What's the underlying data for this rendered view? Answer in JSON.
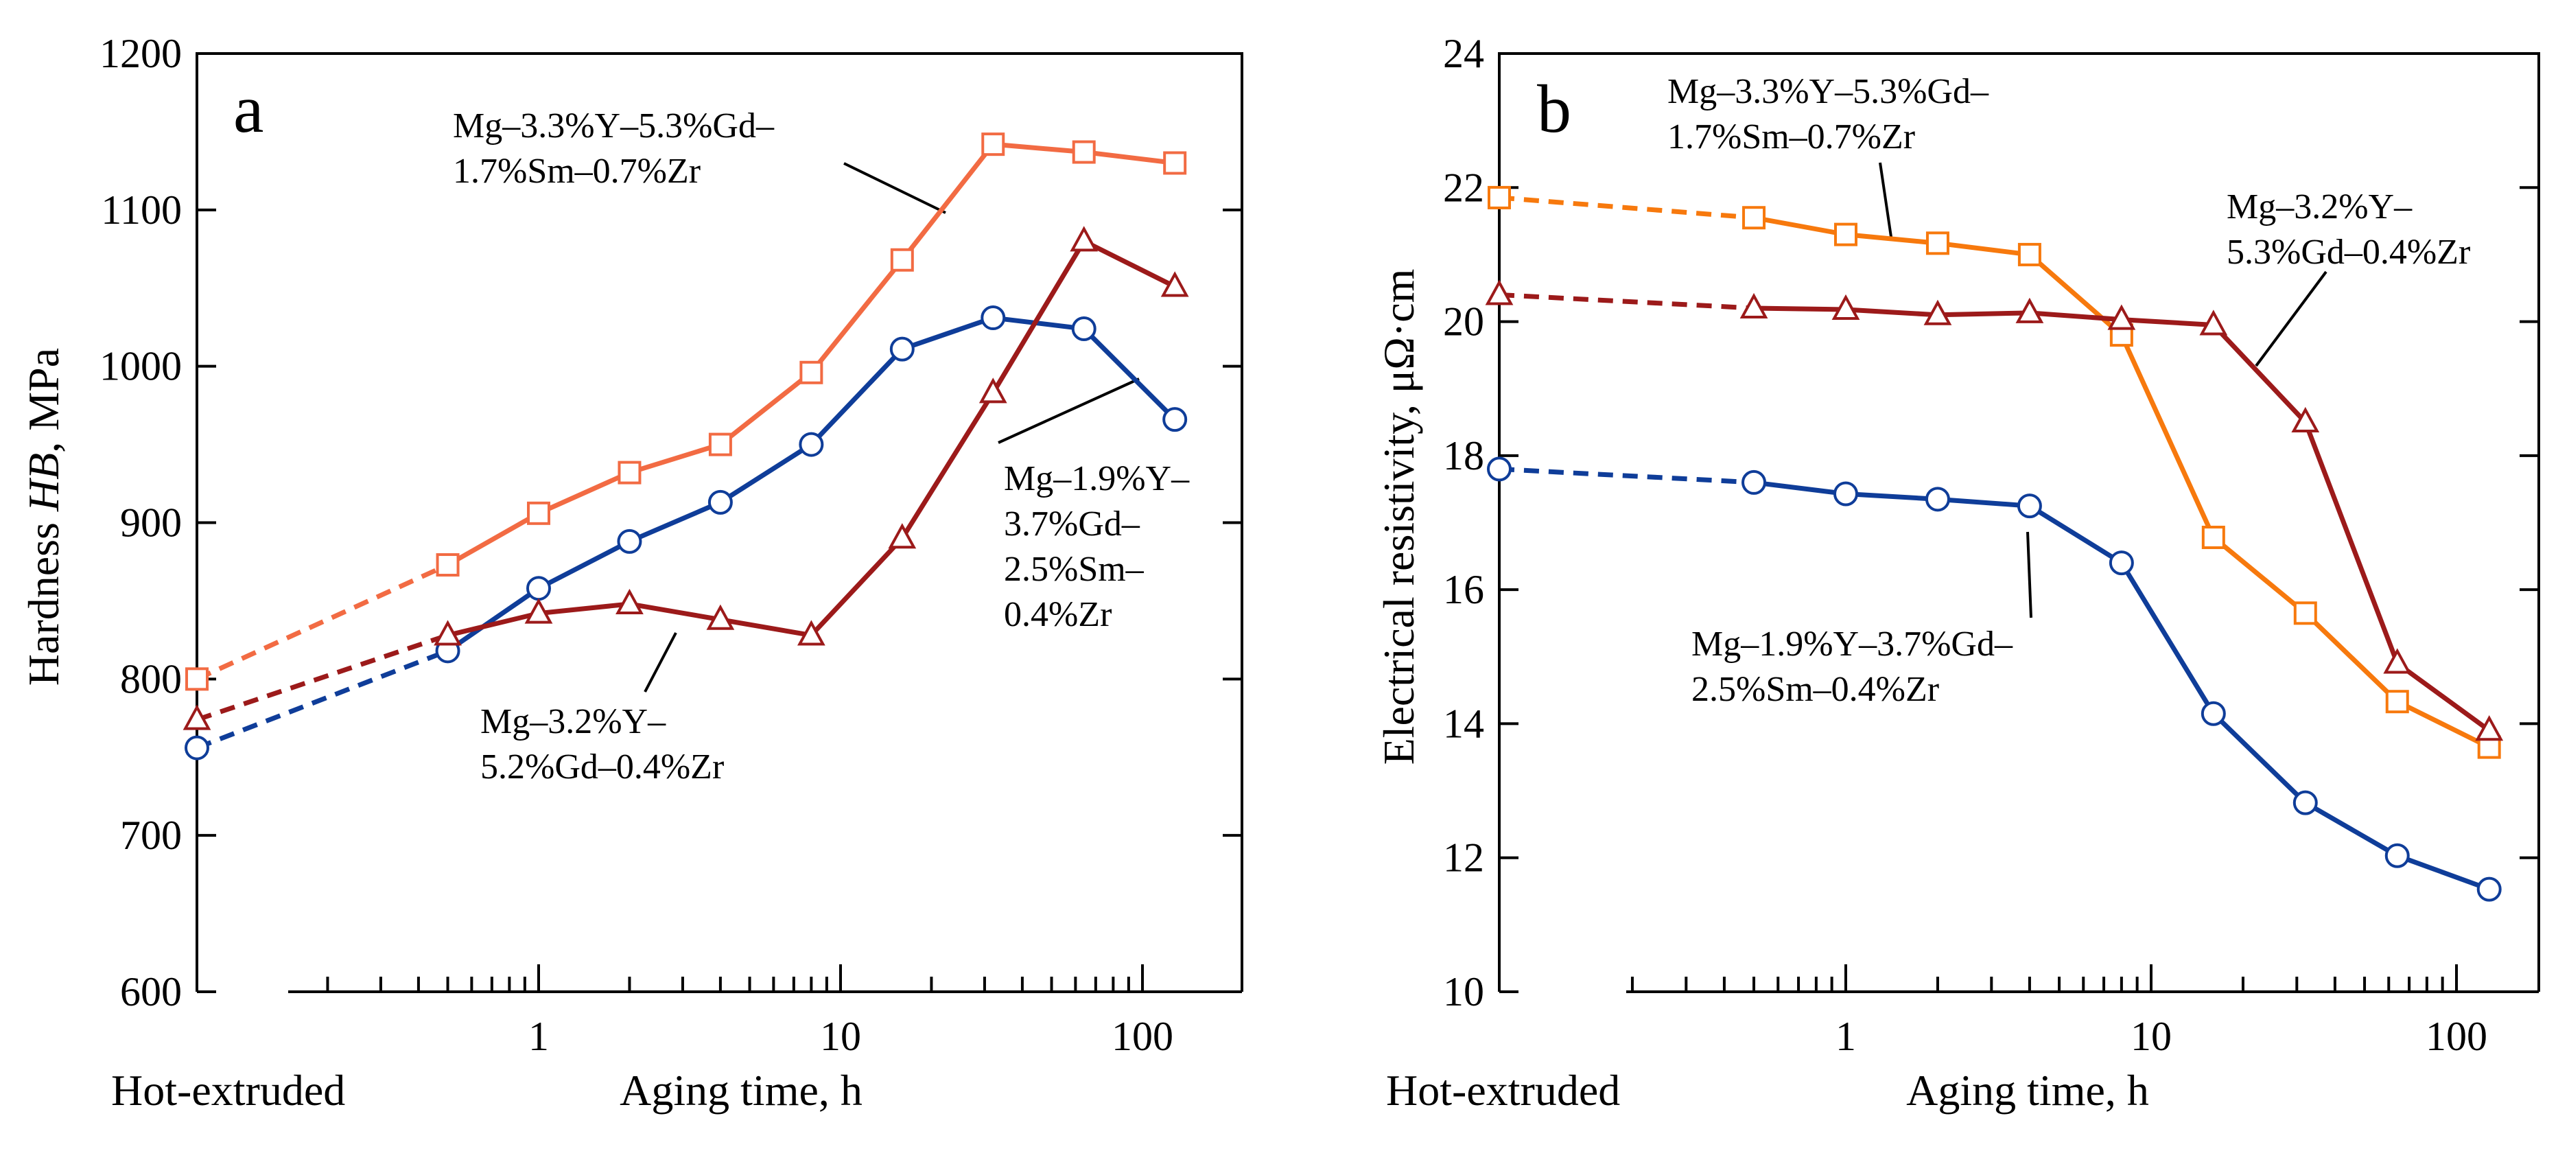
{
  "chart_data": [
    {
      "type": "line",
      "panel_label": "a",
      "ylabel_prefix": "Hardness ",
      "ylabel_italic": "HB",
      "ylabel_suffix": ", MPa",
      "xlabel": "Aging time, h",
      "x_start_label": "Hot-extruded",
      "x_scale": "log",
      "ylim": [
        600,
        1200
      ],
      "y_ticks": [
        600,
        700,
        800,
        900,
        1000,
        1100,
        1200
      ],
      "x_ticks": [
        {
          "value": 1,
          "label": "1"
        },
        {
          "value": 10,
          "label": "10"
        },
        {
          "value": 100,
          "label": "100"
        }
      ],
      "x_start": 0.113,
      "x_dashed_to": 0.5,
      "series": [
        {
          "name": "Mg–3.3%Y–5.3%Gd–1.7%Sm–0.7%Zr",
          "marker": "square",
          "color": "#f26b43",
          "x": [
            0.113,
            0.5,
            1,
            2,
            4,
            8,
            16,
            32,
            64,
            128
          ],
          "values": [
            800,
            873,
            906,
            932,
            950,
            996,
            1068,
            1142,
            1137,
            1130
          ],
          "label_lines": [
            "Mg–3.3%Y–5.3%Gd–",
            "1.7%Sm–0.7%Zr"
          ]
        },
        {
          "name": "Mg–1.9%Y–3.7%Gd–2.5%Sm–0.4%Zr",
          "marker": "circle",
          "color": "#0f3d99",
          "x": [
            0.113,
            0.5,
            1,
            2,
            4,
            8,
            16,
            32,
            64,
            128
          ],
          "values": [
            756,
            818,
            858,
            888,
            913,
            950,
            1011,
            1031,
            1024,
            966
          ],
          "label_lines": [
            "Mg–1.9%Y–",
            "3.7%Gd–",
            "2.5%Sm–",
            "0.4%Zr"
          ]
        },
        {
          "name": "Mg–3.2%Y–5.2%Gd–0.4%Zr",
          "marker": "triangle",
          "color": "#9c1a1a",
          "x": [
            0.113,
            0.5,
            1,
            2,
            4,
            8,
            16,
            32,
            64,
            128
          ],
          "values": [
            774,
            828,
            842,
            848,
            838,
            828,
            890,
            983,
            1080,
            1051
          ],
          "label_lines": [
            "Mg–3.2%Y–",
            "5.2%Gd–0.4%Zr"
          ]
        }
      ]
    },
    {
      "type": "line",
      "panel_label": "b",
      "ylabel": "Electrical resistivity, μΩ·cm",
      "xlabel": "Aging time, h",
      "x_start_label": "Hot-extruded",
      "x_scale": "log",
      "ylim": [
        10,
        24
      ],
      "y_ticks": [
        10,
        12,
        14,
        16,
        18,
        20,
        22,
        24
      ],
      "x_ticks": [
        {
          "value": 1,
          "label": "1"
        },
        {
          "value": 10,
          "label": "10"
        },
        {
          "value": 100,
          "label": "100"
        }
      ],
      "x_start": 0.113,
      "x_dashed_to": 0.5,
      "series": [
        {
          "name": "Mg–3.3%Y–5.3%Gd–1.7%Sm–0.7%Zr",
          "marker": "square",
          "color": "#f7790d",
          "x": [
            0.113,
            0.5,
            1,
            2,
            4,
            8,
            16,
            32,
            64,
            128
          ],
          "values": [
            21.85,
            21.55,
            21.3,
            21.17,
            21.0,
            19.8,
            16.78,
            15.65,
            14.33,
            13.65
          ],
          "label_lines": [
            "Mg–3.3%Y–5.3%Gd–",
            "1.7%Sm–0.7%Zr"
          ]
        },
        {
          "name": "Mg–3.2%Y–5.3%Gd–0.4%Zr",
          "marker": "triangle",
          "color": "#9c1a1a",
          "x": [
            0.113,
            0.5,
            1,
            2,
            4,
            8,
            16,
            32,
            64,
            128
          ],
          "values": [
            20.4,
            20.2,
            20.18,
            20.1,
            20.13,
            20.03,
            19.95,
            18.5,
            14.9,
            13.9
          ],
          "label_lines": [
            "Mg–3.2%Y–",
            "5.3%Gd–0.4%Zr"
          ]
        },
        {
          "name": "Mg–1.9%Y–3.7%Gd–2.5%Sm–0.4%Zr",
          "marker": "circle",
          "color": "#0f3d99",
          "x": [
            0.113,
            0.5,
            1,
            2,
            4,
            8,
            16,
            32,
            64,
            128
          ],
          "values": [
            17.8,
            17.6,
            17.43,
            17.35,
            17.25,
            16.4,
            14.15,
            12.82,
            12.03,
            11.53
          ],
          "label_lines": [
            "Mg–1.9%Y–3.7%Gd–",
            "2.5%Sm–0.4%Zr"
          ]
        }
      ]
    }
  ]
}
